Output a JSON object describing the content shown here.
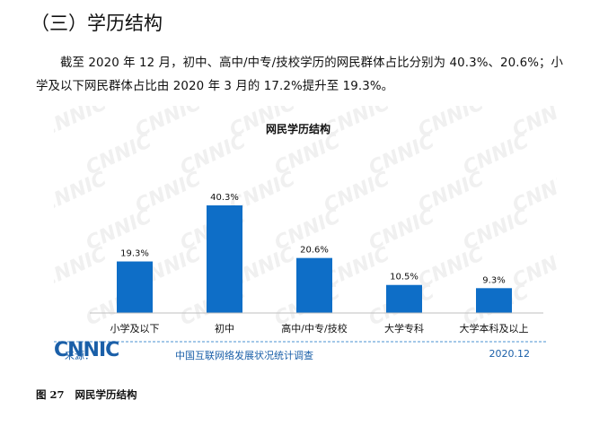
{
  "section": {
    "title": "（三）学历结构"
  },
  "paragraph": "截至 2020 年 12 月，初中、高中/中专/技校学历的网民群体占比分别为 40.3%、20.6%；小学及以下网民群体占比由 2020 年 3 月的 17.2%提升至 19.3%。",
  "figure": {
    "source_label": "来源：",
    "logo_text": "CNNIC",
    "org_name": "中国互联网络发展状况统计调查",
    "date": "2020.12",
    "watermark": "CNNIC",
    "caption_number": "图 27",
    "caption_title": "网民学历结构"
  },
  "colors": {
    "bar": "#0e6ec7",
    "axis": "#bfbfbf",
    "logo": "#1a5fa8",
    "source_line": "#4a90d0"
  },
  "chart_data": {
    "type": "bar",
    "title": "网民学历结构",
    "categories": [
      "小学及以下",
      "初中",
      "高中/中专/技校",
      "大学专科",
      "大学本科及以上"
    ],
    "values": [
      19.3,
      40.3,
      20.6,
      10.5,
      9.3
    ],
    "value_labels": [
      "19.3%",
      "40.3%",
      "20.6%",
      "10.5%",
      "9.3%"
    ],
    "ylim": [
      0,
      45
    ],
    "grid": false,
    "legend": "none"
  }
}
